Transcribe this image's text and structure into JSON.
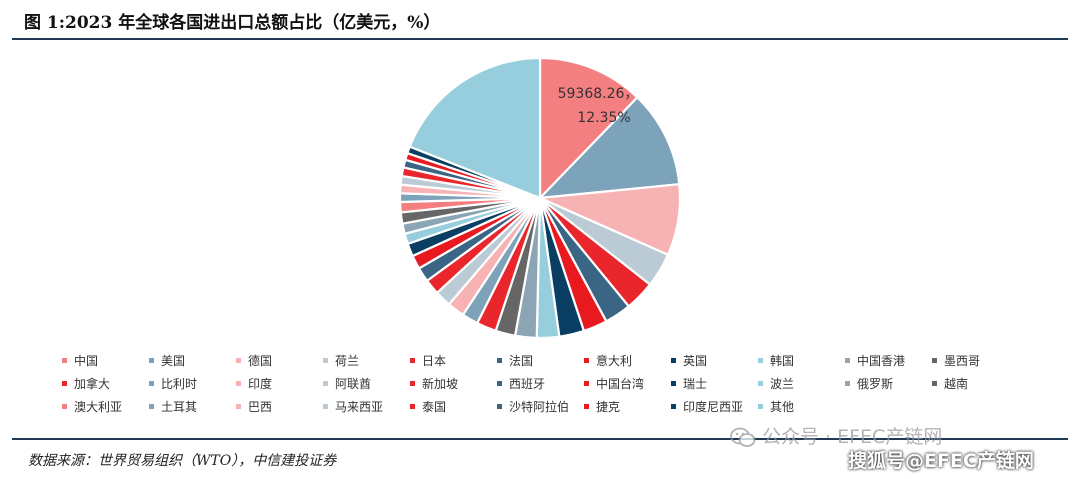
{
  "title": "图 1:2023 年全球各国进出口总额占比（亿美元，%）",
  "source": "数据来源：世界贸易组织（WTO），中信建投证券",
  "watermarks": {
    "wechat": "公众号 · EFEC产链网",
    "sohu": "搜狐号@EFEC产链网"
  },
  "chart_data": {
    "type": "pie",
    "legend_position": "bottom",
    "data_labels": [
      {
        "category": "中国",
        "value": "59368.26，",
        "percent": "12.35%"
      }
    ],
    "categories": [
      "中国",
      "美国",
      "德国",
      "荷兰",
      "日本",
      "法国",
      "意大利",
      "英国",
      "韩国",
      "中国香港",
      "墨西哥",
      "加拿大",
      "比利时",
      "印度",
      "阿联酋",
      "新加坡",
      "西班牙",
      "中国台湾",
      "瑞士",
      "波兰",
      "俄罗斯",
      "越南",
      "澳大利亚",
      "土耳其",
      "巴西",
      "马来西亚",
      "泰国",
      "沙特阿拉伯",
      "捷克",
      "印度尼西亚",
      "其他"
    ],
    "percents": [
      12.35,
      11.3,
      8.3,
      4.0,
      3.5,
      3.1,
      2.8,
      2.9,
      2.6,
      2.5,
      2.3,
      2.3,
      1.9,
      2.0,
      1.9,
      1.8,
      1.7,
      1.6,
      1.5,
      1.2,
      1.2,
      1.3,
      1.2,
      1.0,
      1.0,
      1.0,
      1.0,
      0.9,
      0.8,
      0.8,
      19.2
    ],
    "colors": [
      "#F47F80",
      "#7DA3BA",
      "#F7B2B4",
      "#BBCBD6",
      "#E8262C",
      "#3B6584",
      "#E8191F",
      "#0A3F63",
      "#96CEDD",
      "#8CA5B5",
      "#666666",
      "#E8262C",
      "#7DA3BA",
      "#F7B2B4",
      "#BBCBD6",
      "#E8262C",
      "#3B6584",
      "#E8191F",
      "#0A3F63",
      "#96CEDD",
      "#8CA5B5",
      "#666666",
      "#F47F80",
      "#7DA3BA",
      "#F7B2B4",
      "#BBCBD6",
      "#E8262C",
      "#3B6584",
      "#E8191F",
      "#0A3F63",
      "#96CEDD"
    ]
  }
}
